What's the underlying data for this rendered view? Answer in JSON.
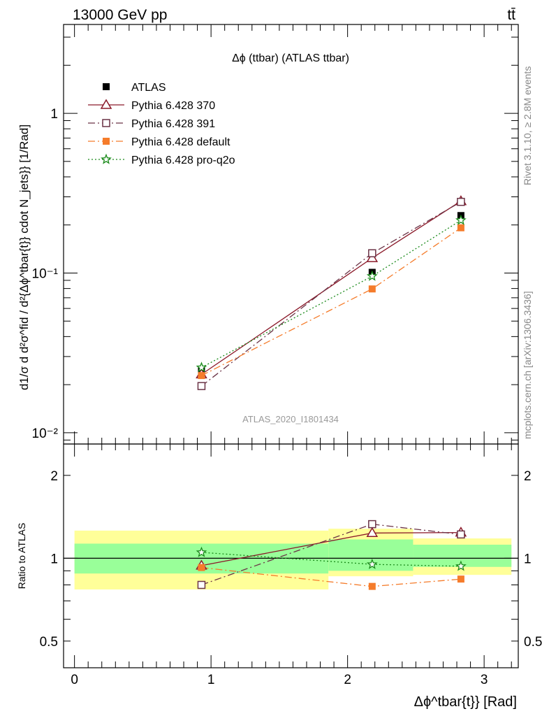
{
  "header": {
    "energy_label": "13000 GeV pp",
    "process_label": "tt̄"
  },
  "side_labels": {
    "rivet": "Rivet 3.1.10, ≥ 2.8M events",
    "mcplots": "mcplots.cern.ch [arXiv:1306.3436]"
  },
  "chart_data": [
    {
      "type": "line",
      "title": "Δϕ (ttbar) (ATLAS ttbar)",
      "watermark": "ATLAS_2020_I1801434",
      "ylabel": "d1/σ d d²σ^fid / d²{Δϕ^tbar{t}} cdot N_jets}} [1/Rad]",
      "yscale": "log",
      "ylim": [
        0.0085,
        3.6
      ],
      "xlim": [
        -0.08,
        3.25
      ],
      "ytick_labels": [
        "10⁻²",
        "10⁻¹",
        "1"
      ],
      "legend_position": "top-left",
      "x": [
        0.93,
        2.18,
        2.83
      ],
      "series": [
        {
          "name": "ATLAS",
          "values": [
            0.0245,
            0.101,
            0.229
          ],
          "color": "#000000",
          "marker": "filled-square"
        },
        {
          "name": "Pythia 6.428 370",
          "values": [
            0.0232,
            0.124,
            0.282
          ],
          "color": "#8b1a2a",
          "marker": "open-triangle",
          "line": "solid"
        },
        {
          "name": "Pythia 6.428 391",
          "values": [
            0.0196,
            0.133,
            0.279
          ],
          "color": "#6b3346",
          "marker": "open-square",
          "line": "dash-dot"
        },
        {
          "name": "Pythia 6.428 default",
          "values": [
            0.0228,
            0.0795,
            0.192
          ],
          "color": "#f57c2b",
          "marker": "filled-square",
          "line": "dash-dot"
        },
        {
          "name": "Pythia 6.428 pro-q2o",
          "values": [
            0.0256,
            0.0955,
            0.214
          ],
          "color": "#1a8a1a",
          "marker": "open-star",
          "line": "dotted"
        }
      ]
    },
    {
      "type": "line",
      "ylabel": "Ratio to ATLAS",
      "xlabel": "Δϕ^tbar{t}} [Rad]",
      "yscale": "log",
      "ylim": [
        0.4,
        2.6
      ],
      "xlim": [
        -0.08,
        3.25
      ],
      "xtick_labels": [
        "0",
        "1",
        "2",
        "3"
      ],
      "ytick_labels": [
        "0.5",
        "1",
        "2"
      ],
      "bins": [
        [
          0.0,
          1.86
        ],
        [
          1.86,
          2.48
        ],
        [
          2.48,
          3.2
        ]
      ],
      "band_inner": [
        [
          0.88,
          1.13
        ],
        [
          0.9,
          1.17
        ],
        [
          0.93,
          1.12
        ]
      ],
      "band_outer": [
        [
          0.77,
          1.26
        ],
        [
          0.86,
          1.28
        ],
        [
          0.87,
          1.18
        ]
      ],
      "x": [
        0.93,
        2.18,
        2.83
      ],
      "series": [
        {
          "name": "Pythia 6.428 370",
          "values": [
            0.94,
            1.235,
            1.24
          ],
          "color": "#8b1a2a",
          "marker": "open-triangle",
          "line": "solid"
        },
        {
          "name": "Pythia 6.428 391",
          "values": [
            0.8,
            1.33,
            1.22
          ],
          "color": "#6b3346",
          "marker": "open-square",
          "line": "dash-dot"
        },
        {
          "name": "Pythia 6.428 default",
          "values": [
            0.925,
            0.79,
            0.84
          ],
          "color": "#f57c2b",
          "marker": "filled-square",
          "line": "dash-dot"
        },
        {
          "name": "Pythia 6.428 pro-q2o",
          "values": [
            1.05,
            0.95,
            0.935
          ],
          "color": "#1a8a1a",
          "marker": "open-star",
          "line": "dotted"
        }
      ]
    }
  ]
}
